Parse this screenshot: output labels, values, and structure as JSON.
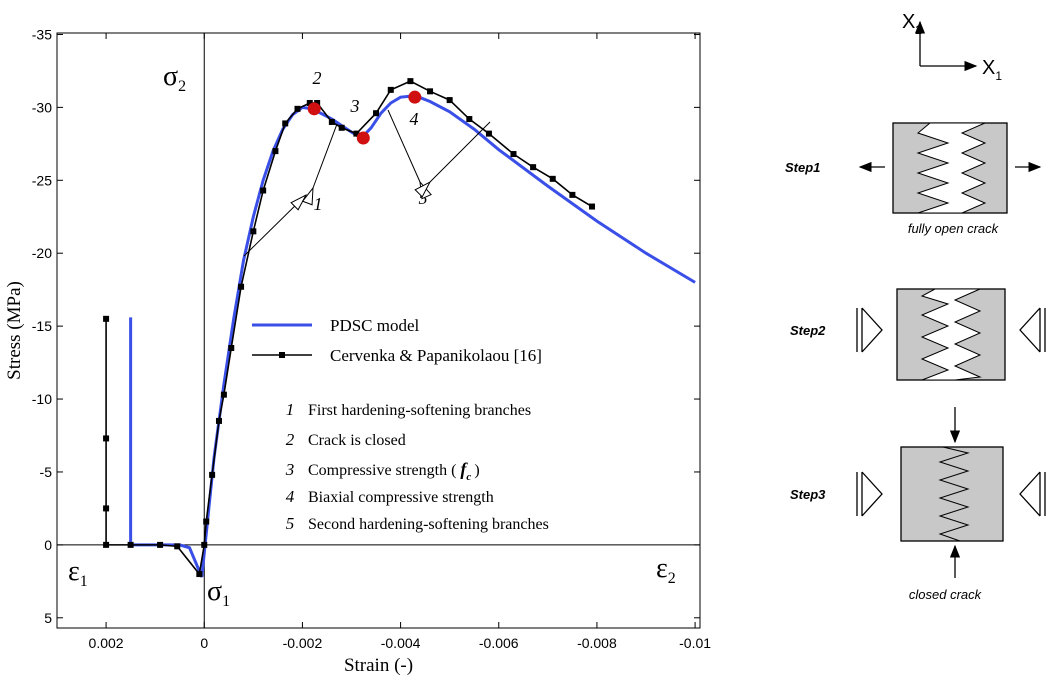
{
  "chart_data": {
    "type": "line",
    "x_label": "Strain (-)",
    "y_label": "Stress (MPa)",
    "xlim": [
      0.003,
      -0.0101
    ],
    "ylim": [
      5.7,
      -35.1
    ],
    "xticks": [
      0.002,
      0,
      -0.002,
      -0.004,
      -0.006,
      -0.008,
      -0.01
    ],
    "yticks": [
      -35,
      -30,
      -25,
      -20,
      -15,
      -10,
      -5,
      0,
      5
    ],
    "legend": "center",
    "series": [
      {
        "name": "PDSC model",
        "color": "#3a4fe8",
        "marker": "none",
        "x": [
          0.0015,
          0.0015,
          0.0005,
          0.0003,
          5e-05,
          -0.0002,
          -0.0004,
          -0.0006,
          -0.0008,
          -0.001,
          -0.0012,
          -0.0014,
          -0.0016,
          -0.0018,
          -0.002,
          -0.0022,
          -0.0026,
          -0.003,
          -0.0032,
          -0.0034,
          -0.0036,
          -0.0038,
          -0.004,
          -0.0043,
          -0.0046,
          -0.005,
          -0.0055,
          -0.006,
          -0.007,
          -0.008,
          -0.009,
          -0.01
        ],
        "values": [
          -15.6,
          0,
          0,
          0.2,
          2.2,
          -6,
          -11,
          -15.5,
          -19.5,
          -22.5,
          -25,
          -27,
          -28.5,
          -29.5,
          -30,
          -29.9,
          -29.2,
          -28.3,
          -27.9,
          -28.6,
          -29.6,
          -30.3,
          -30.7,
          -30.8,
          -30.4,
          -29.7,
          -28.5,
          -27.1,
          -24.6,
          -22.2,
          -20,
          -18
        ]
      },
      {
        "name": "Cervenka & Papanikolaou [16]",
        "color": "#000000",
        "marker": "square",
        "x": [
          0.002,
          0.002,
          0.002,
          0.002,
          0.0015,
          0.0009,
          0.00055,
          0.0001,
          0,
          -4e-05,
          -0.00016,
          -0.0003,
          -0.0004,
          -0.00055,
          -0.00075,
          -0.001,
          -0.0012,
          -0.00145,
          -0.00165,
          -0.0019,
          -0.00215,
          -0.0023,
          -0.0026,
          -0.0028,
          -0.0031,
          -0.0035,
          -0.0038,
          -0.0042,
          -0.0046,
          -0.005,
          -0.0054,
          -0.0058,
          -0.0063,
          -0.0067,
          -0.0071,
          -0.0075,
          -0.0079
        ],
        "values": [
          -15.5,
          -7.3,
          -2.5,
          0,
          0,
          0,
          0.1,
          2,
          0,
          -1.6,
          -4.8,
          -8.5,
          -10.3,
          -13.5,
          -17.7,
          -21.5,
          -24.3,
          -27,
          -28.9,
          -29.9,
          -30.3,
          -30.3,
          -29,
          -28.6,
          -28.2,
          -29.6,
          -31.2,
          -31.8,
          -31.1,
          -30.5,
          -29.2,
          -28.2,
          -26.8,
          -25.9,
          -25.1,
          -24,
          -23.2
        ]
      }
    ],
    "highlights": {
      "color": "#d01010",
      "x": [
        -0.00224,
        -0.00324,
        -0.00429
      ],
      "values": [
        -29.9,
        -27.9,
        -30.7
      ]
    },
    "symbols": [
      {
        "main": "σ",
        "sub": "2"
      },
      {
        "main": "σ",
        "sub": "1"
      },
      {
        "main": "ε",
        "sub": "1"
      },
      {
        "main": "ε",
        "sub": "2"
      }
    ],
    "callouts": [
      "1",
      "2",
      "3",
      "4",
      "5"
    ],
    "notes": [
      {
        "num": "1",
        "text": "First hardening-softening branches"
      },
      {
        "num": "2",
        "text": "Crack is closed"
      },
      {
        "num": "3",
        "text": "Compressive strength (",
        "symbol": "f",
        "sub": "c",
        "close": ")"
      },
      {
        "num": "4",
        "text": "Biaxial compressive strength"
      },
      {
        "num": "5",
        "text": "Second hardening-softening branches"
      }
    ]
  },
  "diagram": {
    "axes": [
      {
        "main": "X",
        "sub": "2"
      },
      {
        "main": "X",
        "sub": "1"
      }
    ],
    "steps": [
      {
        "label": "Step1",
        "caption": "fully open crack"
      },
      {
        "label": "Step2"
      },
      {
        "label": "Step3",
        "caption": "closed crack"
      }
    ]
  }
}
